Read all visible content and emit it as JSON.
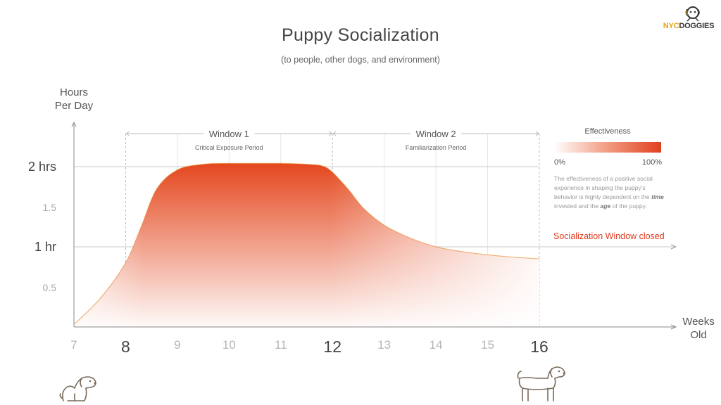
{
  "header": {
    "title": "Puppy Socialization",
    "subtitle": "(to people, other dogs, and environment)"
  },
  "brand": {
    "text_part1": "NYC",
    "text_part2": "DOGGIES",
    "icon": "dog-head-icon",
    "colors": {
      "accent": "#e8a317",
      "dark": "#333333"
    }
  },
  "chart_data": {
    "type": "area",
    "title": "Puppy Socialization",
    "subtitle": "(to people, other dogs, and environment)",
    "ylabel": [
      "Hours",
      "Per Day"
    ],
    "xlabel": [
      "Weeks",
      "Old"
    ],
    "xlim": [
      7,
      16
    ],
    "ylim": [
      0,
      2.05
    ],
    "x_ticks": [
      7,
      8,
      9,
      10,
      11,
      12,
      13,
      14,
      15,
      16
    ],
    "x_ticks_emphasized": [
      8,
      12,
      16
    ],
    "y_ticks": [
      {
        "value": 2,
        "label": "2 hrs",
        "emphasized": true
      },
      {
        "value": 1.5,
        "label": "1.5",
        "emphasized": false
      },
      {
        "value": 1,
        "label": "1 hr",
        "emphasized": true
      },
      {
        "value": 0.5,
        "label": "0.5",
        "emphasized": false
      }
    ],
    "series": [
      {
        "x": [
          7,
          7.5,
          8,
          8.3,
          8.6,
          9,
          9.5,
          10,
          10.5,
          11,
          11.5,
          11.8,
          12,
          12.3,
          12.6,
          13,
          13.5,
          14,
          14.5,
          15,
          15.5,
          16
        ],
        "y": [
          0.03,
          0.35,
          0.8,
          1.25,
          1.72,
          1.96,
          2.03,
          2.04,
          2.04,
          2.04,
          2.03,
          2.01,
          1.93,
          1.72,
          1.48,
          1.27,
          1.11,
          1.0,
          0.94,
          0.9,
          0.87,
          0.85
        ]
      }
    ],
    "windows": [
      {
        "name": "Window 1",
        "description": "Critical Exposure Period",
        "start": 8,
        "end": 12
      },
      {
        "name": "Window 2",
        "description": "Familiarization Period",
        "start": 12,
        "end": 16
      }
    ],
    "legend": {
      "title": "Effectiveness",
      "min_label": "0%",
      "max_label": "100%",
      "gradient_colors": [
        "#ffffff",
        "#e0401c"
      ],
      "placement": "right"
    },
    "colors": {
      "area": "#e4481f",
      "area_edge": "#e8841f",
      "axis": "#888888"
    }
  },
  "legend_note": {
    "part1": "The effectiveness of a positive social experience in shaping the puppy's behavior is highly dependent on the ",
    "em1": "time",
    "part2": " invested and the ",
    "em2": "age",
    "part3": " of the puppy."
  },
  "annotation": {
    "window_closed": "Socialization Window closed"
  },
  "illustrations": {
    "left": "sitting-puppy-icon",
    "right": "standing-dog-icon"
  }
}
